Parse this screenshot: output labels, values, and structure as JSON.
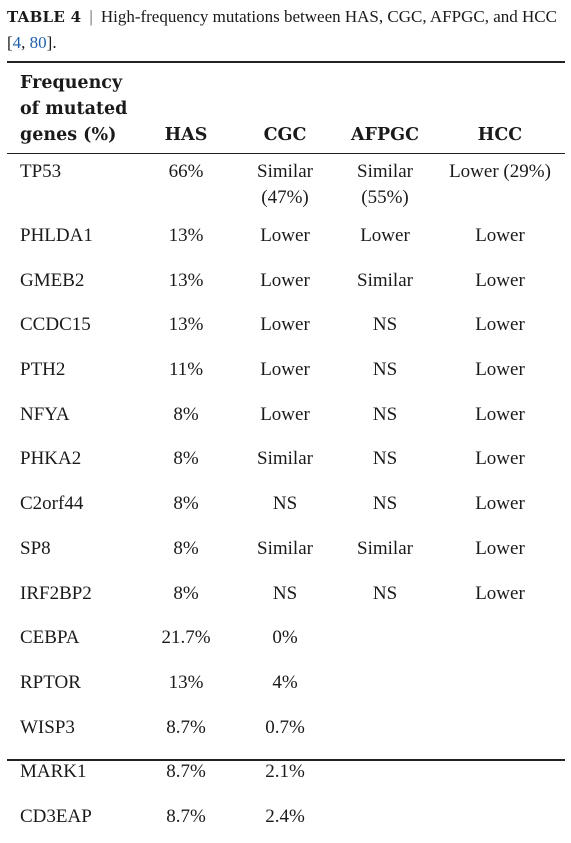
{
  "caption": {
    "label": "TABLE 4",
    "separator": "|",
    "text": "High-frequency mutations between HAS, CGC, AFPGC, and HCC [",
    "ref1": "4",
    "ref_sep": ", ",
    "ref2": "80",
    "end": "]."
  },
  "table": {
    "headers": [
      "Frequency of mutated genes (%)",
      "HAS",
      "CGC",
      "AFPGC",
      "HCC"
    ],
    "rows": [
      [
        "TP53",
        "66%",
        "Similar (47%)",
        "Similar (55%)",
        "Lower (29%)"
      ],
      [
        "PHLDA1",
        "13%",
        "Lower",
        "Lower",
        "Lower"
      ],
      [
        "GMEB2",
        "13%",
        "Lower",
        "Similar",
        "Lower"
      ],
      [
        "CCDC15",
        "13%",
        "Lower",
        "NS",
        "Lower"
      ],
      [
        "PTH2",
        "11%",
        "Lower",
        "NS",
        "Lower"
      ],
      [
        "NFYA",
        "8%",
        "Lower",
        "NS",
        "Lower"
      ],
      [
        "PHKA2",
        "8%",
        "Similar",
        "NS",
        "Lower"
      ],
      [
        "C2orf44",
        "8%",
        "NS",
        "NS",
        "Lower"
      ],
      [
        "SP8",
        "8%",
        "Similar",
        "Similar",
        "Lower"
      ],
      [
        "IRF2BP2",
        "8%",
        "NS",
        "NS",
        "Lower"
      ],
      [
        "CEBPA",
        "21.7%",
        "0%",
        "",
        ""
      ],
      [
        "RPTOR",
        "13%",
        "4%",
        "",
        ""
      ],
      [
        "WISP3",
        "8.7%",
        "0.7%",
        "",
        ""
      ],
      [
        "MARK1",
        "8.7%",
        "2.1%",
        "",
        ""
      ],
      [
        "CD3EAP",
        "8.7%",
        "2.4%",
        "",
        ""
      ]
    ]
  }
}
